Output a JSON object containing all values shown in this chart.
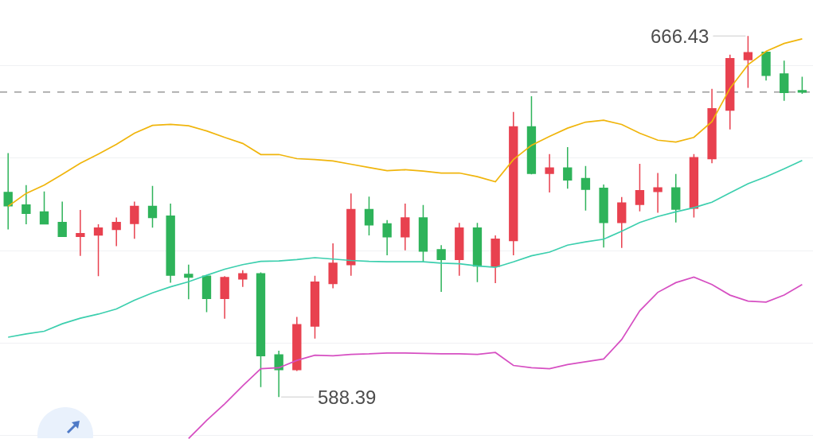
{
  "chart_data": {
    "type": "candlestick",
    "categories": [
      null,
      null,
      null,
      null,
      null,
      null,
      null,
      null,
      null,
      null,
      null,
      null,
      null,
      null,
      null,
      null,
      null,
      null,
      null,
      null,
      null,
      null,
      null,
      null,
      null,
      null,
      null,
      null,
      null,
      null,
      null,
      null,
      null,
      null,
      null,
      null,
      null,
      null,
      null,
      null,
      null,
      null,
      null,
      null,
      null
    ],
    "ohlc": [
      [
        632.6,
        641.1,
        624.6,
        629.7
      ],
      [
        629.9,
        634.2,
        625.7,
        628.1
      ],
      [
        628.4,
        632.8,
        625.7,
        625.8
      ],
      [
        626.1,
        630.6,
        623.1,
        623.1
      ],
      [
        623.1,
        628.8,
        618.9,
        623.7
      ],
      [
        623.4,
        625.7,
        614.5,
        624.9
      ],
      [
        624.6,
        627.2,
        621.0,
        626.1
      ],
      [
        625.9,
        630.6,
        622.6,
        629.6
      ],
      [
        629.6,
        634.0,
        625.0,
        627.2
      ],
      [
        627.5,
        630.2,
        613.1,
        614.7
      ],
      [
        614.9,
        617.0,
        609.5,
        614.3
      ],
      [
        614.5,
        614.6,
        606.7,
        609.7
      ],
      [
        609.7,
        614.5,
        605.3,
        614.2
      ],
      [
        613.9,
        615.8,
        612.2,
        615.0
      ],
      [
        615.0,
        615.3,
        590.5,
        597.3
      ],
      [
        597.5,
        598.4,
        588.39,
        594.3
      ],
      [
        594.3,
        605.7,
        594.0,
        604.0
      ],
      [
        603.7,
        614.6,
        601.0,
        613.2
      ],
      [
        612.9,
        621.6,
        611.9,
        617.3
      ],
      [
        617.0,
        632.4,
        614.6,
        628.9
      ],
      [
        628.9,
        631.7,
        623.3,
        625.6
      ],
      [
        625.8,
        626.6,
        619.0,
        623.0
      ],
      [
        623.0,
        630.2,
        620.1,
        627.1
      ],
      [
        627.1,
        629.9,
        617.6,
        619.9
      ],
      [
        620.2,
        621.2,
        611.1,
        618.1
      ],
      [
        618.1,
        626.0,
        614.6,
        624.9
      ],
      [
        624.9,
        626.0,
        613.2,
        616.7
      ],
      [
        616.6,
        623.3,
        613.0,
        622.5
      ],
      [
        622.2,
        650.0,
        619.0,
        646.8
      ],
      [
        646.8,
        653.4,
        636.5,
        636.7
      ],
      [
        636.7,
        640.9,
        632.6,
        637.9
      ],
      [
        637.9,
        642.4,
        633.4,
        635.3
      ],
      [
        635.6,
        638.3,
        628.7,
        633.3
      ],
      [
        633.5,
        634.3,
        620.7,
        626.1
      ],
      [
        626.1,
        631.6,
        620.6,
        630.3
      ],
      [
        630.0,
        638.8,
        628.5,
        633.0
      ],
      [
        632.8,
        636.8,
        628.2,
        633.6
      ],
      [
        633.6,
        636.6,
        626.1,
        629.0
      ],
      [
        629.2,
        640.9,
        627.2,
        640.1
      ],
      [
        639.9,
        655.0,
        638.9,
        650.7
      ],
      [
        650.4,
        662.4,
        646.2,
        661.5
      ],
      [
        661.3,
        666.43,
        655.2,
        662.8
      ],
      [
        662.9,
        663.2,
        656.8,
        657.9
      ],
      [
        658.2,
        661.1,
        652.4,
        654.2
      ],
      [
        654.6,
        657.6,
        653.9,
        654.3
      ]
    ],
    "colors": [
      "#2eb35a",
      "#2eb35a",
      "#2eb35a",
      "#2eb35a",
      "#e8414f",
      "#e8414f",
      "#e8414f",
      "#e8414f",
      "#2eb35a",
      "#2eb35a",
      "#2eb35a",
      "#2eb35a",
      "#e8414f",
      "#e8414f",
      "#2eb35a",
      "#2eb35a",
      "#e8414f",
      "#e8414f",
      "#e8414f",
      "#e8414f",
      "#2eb35a",
      "#2eb35a",
      "#e8414f",
      "#2eb35a",
      "#2eb35a",
      "#e8414f",
      "#2eb35a",
      "#e8414f",
      "#e8414f",
      "#2eb35a",
      "#e8414f",
      "#2eb35a",
      "#2eb35a",
      "#2eb35a",
      "#e8414f",
      "#e8414f",
      "#e8414f",
      "#2eb35a",
      "#e8414f",
      "#e8414f",
      "#e8414f",
      "#e8414f",
      "#2eb35a",
      "#2eb35a",
      "#2eb35a"
    ],
    "series": [
      {
        "type": "line",
        "color": "#f0b50c",
        "values": [
          629.6,
          632.4,
          634.2,
          636.5,
          638.9,
          640.9,
          643.0,
          645.4,
          647.1,
          647.3,
          647.0,
          645.9,
          644.5,
          643.2,
          640.8,
          640.8,
          639.9,
          639.7,
          639.4,
          638.7,
          638.0,
          637.3,
          637.5,
          637.2,
          636.8,
          636.8,
          636.0,
          634.9,
          639.7,
          642.8,
          644.7,
          646.5,
          647.8,
          648.2,
          647.3,
          645.4,
          643.9,
          643.5,
          644.5,
          647.9,
          655.1,
          660.2,
          663.1,
          664.8,
          665.8
        ]
      },
      {
        "type": "line",
        "color": "#3ccfae",
        "values": [
          601.3,
          602.0,
          602.6,
          604.2,
          605.4,
          606.3,
          607.4,
          609.3,
          610.9,
          612.2,
          613.3,
          614.7,
          616.0,
          617.0,
          617.7,
          617.8,
          618.1,
          618.5,
          618.2,
          617.9,
          617.7,
          617.6,
          617.6,
          617.6,
          617.3,
          617.2,
          616.7,
          616.4,
          617.6,
          618.9,
          619.7,
          621.2,
          621.9,
          622.5,
          624.2,
          626.1,
          627.4,
          628.4,
          629.3,
          630.5,
          632.5,
          634.5,
          636.0,
          637.7,
          639.5
        ]
      },
      {
        "type": "line",
        "color": "#d64fc2",
        "values": [
          null,
          null,
          null,
          null,
          null,
          null,
          null,
          null,
          null,
          null,
          579.4,
          583.3,
          586.9,
          590.8,
          594.5,
          594.7,
          596.3,
          597.4,
          597.3,
          597.6,
          597.7,
          597.9,
          597.9,
          597.8,
          597.7,
          597.7,
          597.6,
          598.0,
          595.2,
          594.7,
          594.5,
          595.4,
          596.0,
          596.6,
          600.8,
          607.0,
          611.0,
          613.1,
          614.3,
          612.7,
          610.4,
          609.1,
          608.9,
          610.4,
          612.7
        ]
      }
    ],
    "ylim": [
      579.3,
      674.2
    ],
    "yticks": [
      580,
      600,
      620,
      640,
      660
    ],
    "grid": "y",
    "tick_labels": false,
    "ref_lines": [
      {
        "axis": "y",
        "value": 654.3,
        "line_style": "dashed",
        "color": "#999999"
      }
    ],
    "annotations": [
      "666.43",
      "588.39"
    ]
  }
}
